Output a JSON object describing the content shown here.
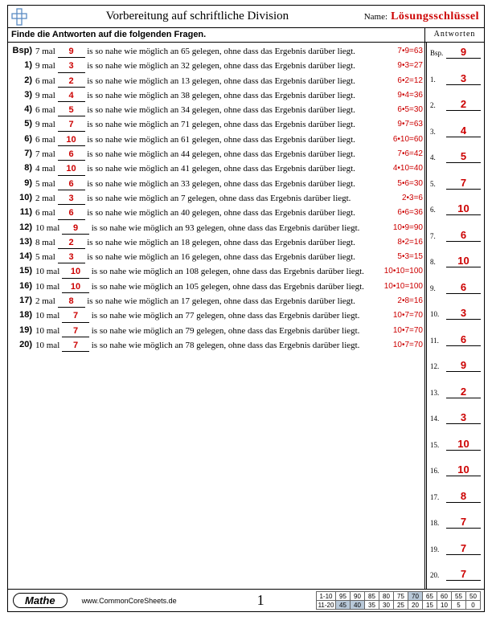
{
  "header": {
    "title": "Vorbereitung auf schriftliche Division",
    "name_label": "Name:",
    "answer_key": "Lösungsschlüssel",
    "instruction": "Finde die Antworten auf die folgenden Fragen.",
    "answers_label": "Antworten"
  },
  "colors": {
    "accent": "#c00",
    "logo": "#5b8bc4",
    "shade": "#b8c8d8"
  },
  "questions": [
    {
      "num": "Bsp)",
      "a": 7,
      "ans": 9,
      "target": 65,
      "hint": "7•9=63"
    },
    {
      "num": "1)",
      "a": 9,
      "ans": 3,
      "target": 32,
      "hint": "9•3=27"
    },
    {
      "num": "2)",
      "a": 6,
      "ans": 2,
      "target": 13,
      "hint": "6•2=12"
    },
    {
      "num": "3)",
      "a": 9,
      "ans": 4,
      "target": 38,
      "hint": "9•4=36"
    },
    {
      "num": "4)",
      "a": 6,
      "ans": 5,
      "target": 34,
      "hint": "6•5=30"
    },
    {
      "num": "5)",
      "a": 9,
      "ans": 7,
      "target": 71,
      "hint": "9•7=63"
    },
    {
      "num": "6)",
      "a": 6,
      "ans": 10,
      "target": 61,
      "hint": "6•10=60"
    },
    {
      "num": "7)",
      "a": 7,
      "ans": 6,
      "target": 44,
      "hint": "7•6=42"
    },
    {
      "num": "8)",
      "a": 4,
      "ans": 10,
      "target": 41,
      "hint": "4•10=40"
    },
    {
      "num": "9)",
      "a": 5,
      "ans": 6,
      "target": 33,
      "hint": "5•6=30"
    },
    {
      "num": "10)",
      "a": 2,
      "ans": 3,
      "target": 7,
      "hint": "2•3=6"
    },
    {
      "num": "11)",
      "a": 6,
      "ans": 6,
      "target": 40,
      "hint": "6•6=36"
    },
    {
      "num": "12)",
      "a": 10,
      "ans": 9,
      "target": 93,
      "hint": "10•9=90"
    },
    {
      "num": "13)",
      "a": 8,
      "ans": 2,
      "target": 18,
      "hint": "8•2=16"
    },
    {
      "num": "14)",
      "a": 5,
      "ans": 3,
      "target": 16,
      "hint": "5•3=15"
    },
    {
      "num": "15)",
      "a": 10,
      "ans": 10,
      "target": 108,
      "hint": "10•10=100"
    },
    {
      "num": "16)",
      "a": 10,
      "ans": 10,
      "target": 105,
      "hint": "10•10=100"
    },
    {
      "num": "17)",
      "a": 2,
      "ans": 8,
      "target": 17,
      "hint": "2•8=16"
    },
    {
      "num": "18)",
      "a": 10,
      "ans": 7,
      "target": 77,
      "hint": "10•7=70"
    },
    {
      "num": "19)",
      "a": 10,
      "ans": 7,
      "target": 79,
      "hint": "10•7=70"
    },
    {
      "num": "20)",
      "a": 10,
      "ans": 7,
      "target": 78,
      "hint": "10•7=70"
    }
  ],
  "question_template": {
    "t1": " mal ",
    "t2": " is so nahe wie möglich an ",
    "t3": " gelegen, ohne dass das Ergebnis darüber liegt."
  },
  "answers_col": [
    {
      "label": "Bsp.",
      "val": "9"
    },
    {
      "label": "1.",
      "val": "3"
    },
    {
      "label": "2.",
      "val": "2"
    },
    {
      "label": "3.",
      "val": "4"
    },
    {
      "label": "4.",
      "val": "5"
    },
    {
      "label": "5.",
      "val": "7"
    },
    {
      "label": "6.",
      "val": "10"
    },
    {
      "label": "7.",
      "val": "6"
    },
    {
      "label": "8.",
      "val": "10"
    },
    {
      "label": "9.",
      "val": "6"
    },
    {
      "label": "10.",
      "val": "3"
    },
    {
      "label": "11.",
      "val": "6"
    },
    {
      "label": "12.",
      "val": "9"
    },
    {
      "label": "13.",
      "val": "2"
    },
    {
      "label": "14.",
      "val": "3"
    },
    {
      "label": "15.",
      "val": "10"
    },
    {
      "label": "16.",
      "val": "10"
    },
    {
      "label": "17.",
      "val": "8"
    },
    {
      "label": "18.",
      "val": "7"
    },
    {
      "label": "19.",
      "val": "7"
    },
    {
      "label": "20.",
      "val": "7"
    }
  ],
  "footer": {
    "subject": "Mathe",
    "site": "www.CommonCoreSheets.de",
    "page": "1",
    "grade_rows": [
      {
        "label": "1-10",
        "cells": [
          "95",
          "90",
          "85",
          "80",
          "75",
          "70",
          "65",
          "60",
          "55",
          "50"
        ],
        "shade": [
          0,
          0,
          0,
          0,
          0,
          1,
          0,
          0,
          0,
          0
        ]
      },
      {
        "label": "11-20",
        "cells": [
          "45",
          "40",
          "35",
          "30",
          "25",
          "20",
          "15",
          "10",
          "5",
          "0"
        ],
        "shade": [
          1,
          1,
          0,
          0,
          0,
          0,
          0,
          0,
          0,
          0
        ]
      }
    ]
  }
}
